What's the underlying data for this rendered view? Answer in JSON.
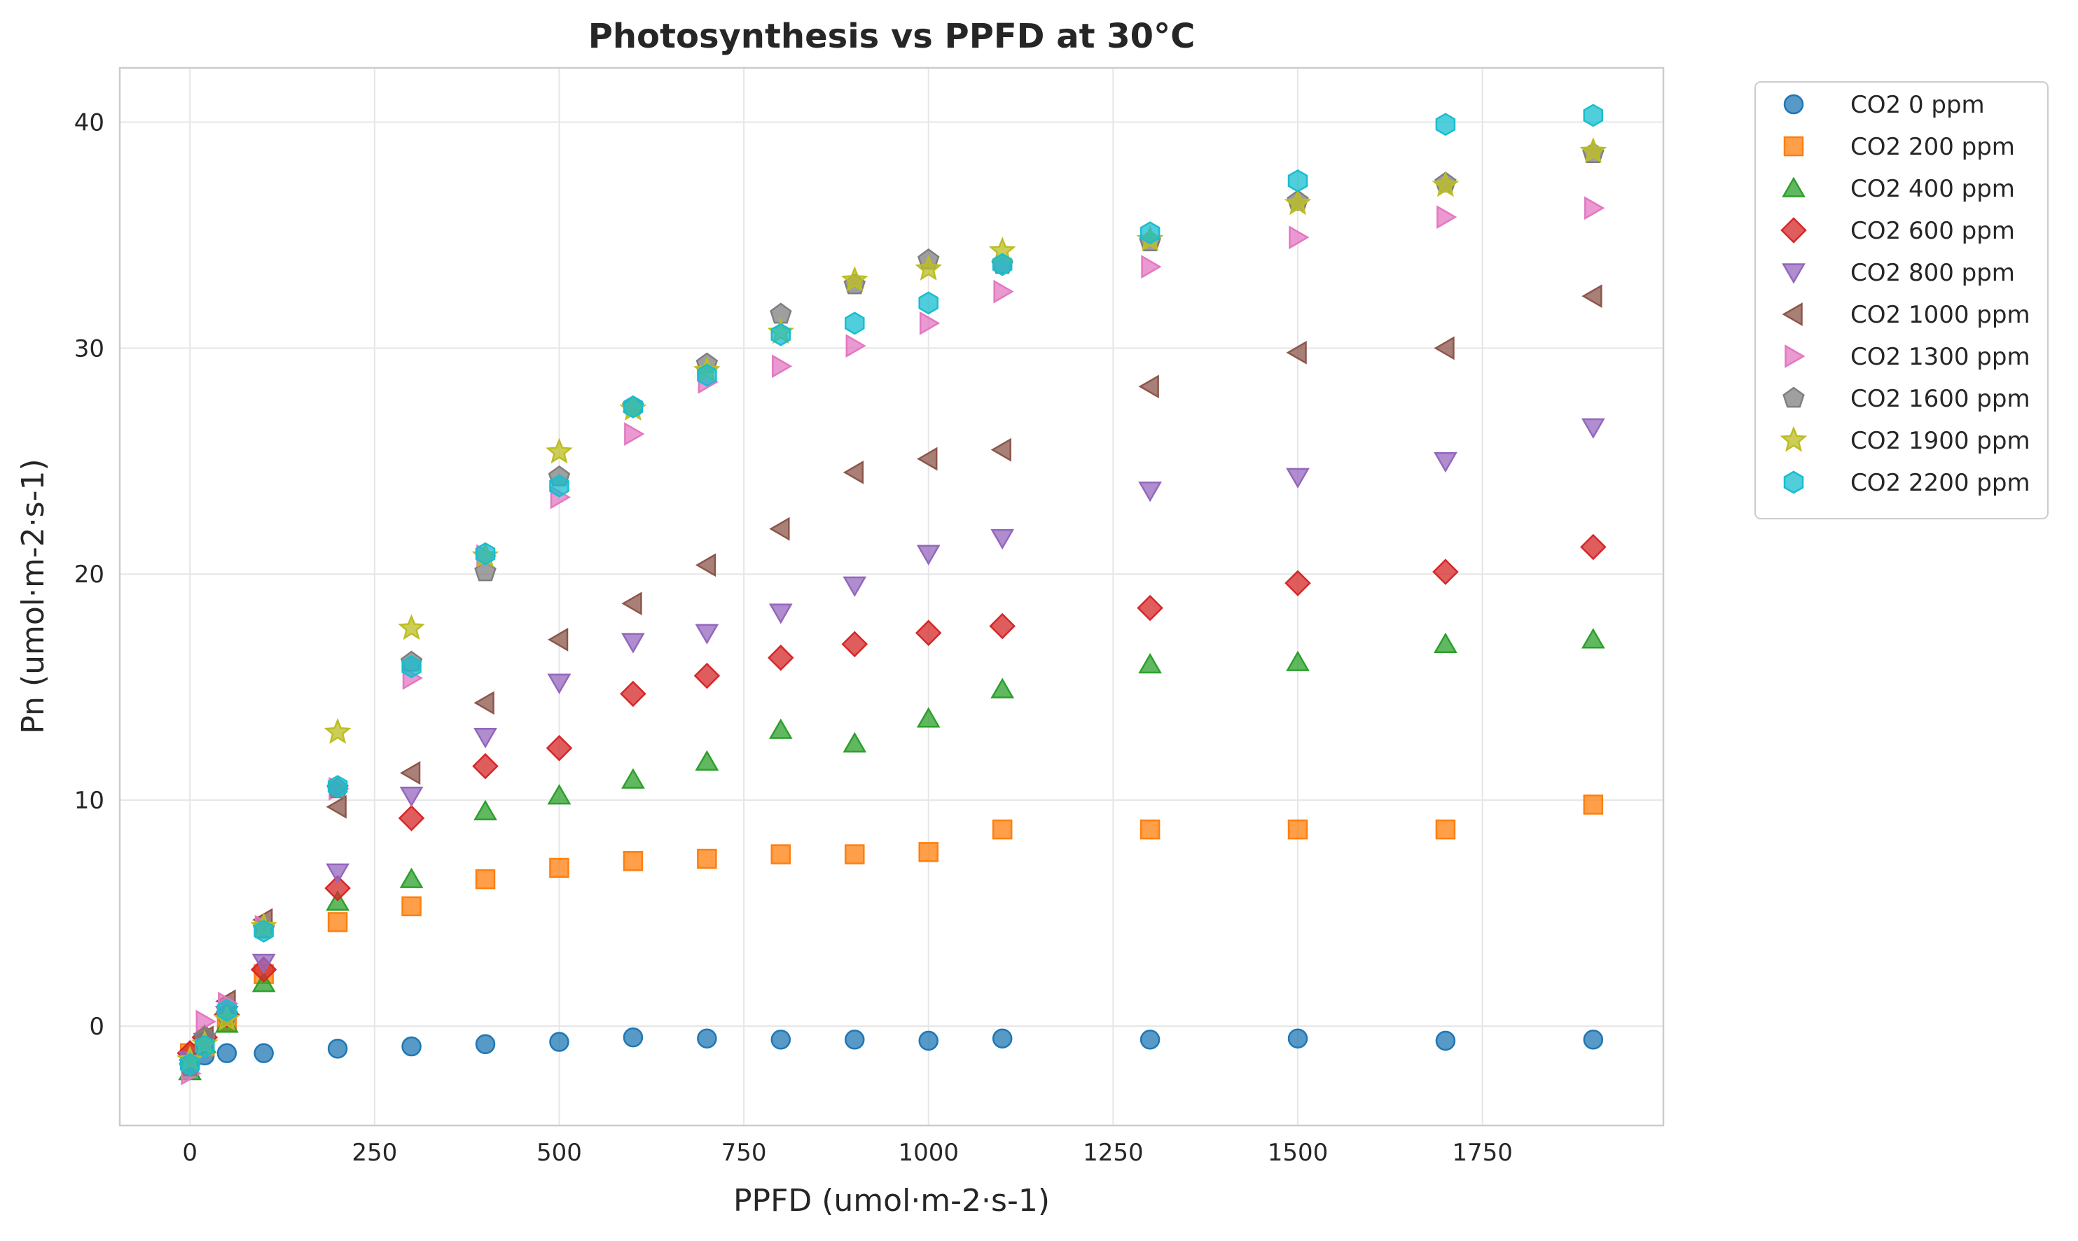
{
  "chart_data": {
    "type": "scatter",
    "title": "Photosynthesis vs PPFD at 30°C",
    "xlabel": "PPFD (umol·m-2·s-1)",
    "ylabel": "Pn (umol·m-2·s-1)",
    "xlim": [
      -95,
      1995
    ],
    "ylim": [
      -4.4,
      42.4
    ],
    "xticks": [
      0,
      250,
      500,
      750,
      1000,
      1250,
      1500,
      1750
    ],
    "yticks": [
      0,
      10,
      20,
      30,
      40
    ],
    "x_tick_labels": [
      "0",
      "250",
      "500",
      "750",
      "1000",
      "1250",
      "1500",
      "1750"
    ],
    "y_tick_labels": [
      "0",
      "10",
      "20",
      "30",
      "40"
    ],
    "grid": true,
    "legend_position": "outside-top-right",
    "x": [
      0,
      20,
      50,
      100,
      200,
      300,
      400,
      500,
      600,
      700,
      800,
      900,
      1000,
      1100,
      1300,
      1500,
      1700,
      1900
    ],
    "series": [
      {
        "name": "CO2 0 ppm",
        "marker": "circle",
        "color": "#1f77b4",
        "values": [
          -1.6,
          -1.3,
          -1.2,
          -1.2,
          -1.0,
          -0.9,
          -0.8,
          -0.7,
          -0.5,
          -0.55,
          -0.6,
          -0.6,
          -0.65,
          -0.55,
          -0.6,
          -0.55,
          -0.65,
          -0.6
        ]
      },
      {
        "name": "CO2 200 ppm",
        "marker": "square",
        "color": "#ff7f0e",
        "values": [
          -1.2,
          -0.9,
          0.2,
          2.3,
          4.6,
          5.3,
          6.5,
          7.0,
          7.3,
          7.4,
          7.6,
          7.6,
          7.7,
          8.7,
          8.7,
          8.7,
          8.7,
          9.8
        ]
      },
      {
        "name": "CO2 400 ppm",
        "marker": "triangle-up",
        "color": "#2ca02c",
        "values": [
          -2.0,
          -0.8,
          0.1,
          1.9,
          5.5,
          6.5,
          9.5,
          10.2,
          10.9,
          11.7,
          13.1,
          12.5,
          13.6,
          14.9,
          16.0,
          16.1,
          16.9,
          17.1
        ]
      },
      {
        "name": "CO2 600 ppm",
        "marker": "diamond",
        "color": "#d62728",
        "values": [
          -1.2,
          -0.5,
          0.5,
          2.5,
          6.1,
          9.2,
          11.5,
          12.3,
          14.7,
          15.5,
          16.3,
          16.9,
          17.4,
          17.7,
          18.5,
          19.6,
          20.1,
          21.2
        ]
      },
      {
        "name": "CO2 800 ppm",
        "marker": "triangle-down",
        "color": "#9467bd",
        "values": [
          -1.5,
          -0.7,
          0.5,
          2.8,
          6.8,
          10.2,
          12.8,
          15.2,
          17.0,
          17.4,
          18.3,
          19.5,
          20.9,
          21.6,
          23.7,
          24.3,
          25.0,
          26.5
        ]
      },
      {
        "name": "CO2 1000 ppm",
        "marker": "triangle-left",
        "color": "#8c564b",
        "values": [
          -1.5,
          -0.5,
          1.1,
          4.7,
          9.7,
          11.2,
          14.3,
          17.1,
          18.7,
          20.4,
          22.0,
          24.5,
          25.1,
          25.5,
          28.3,
          29.8,
          30.0,
          32.3
        ]
      },
      {
        "name": "CO2 1300 ppm",
        "marker": "triangle-right",
        "color": "#e377c2",
        "values": [
          -2.1,
          0.2,
          1.0,
          4.4,
          10.5,
          15.4,
          20.8,
          23.4,
          26.2,
          28.5,
          29.2,
          30.1,
          31.1,
          32.5,
          33.6,
          34.9,
          35.8,
          36.2
        ]
      },
      {
        "name": "CO2 1600 ppm",
        "marker": "pentagon",
        "color": "#7f7f7f",
        "values": [
          -1.8,
          -0.5,
          0.5,
          4.3,
          10.5,
          16.1,
          20.1,
          24.3,
          27.4,
          29.3,
          31.5,
          32.8,
          33.9,
          33.7,
          34.7,
          36.5,
          37.3,
          38.6
        ]
      },
      {
        "name": "CO2 1900 ppm",
        "marker": "star",
        "color": "#bcbd22",
        "values": [
          -1.5,
          -0.8,
          0.3,
          4.4,
          13.0,
          17.6,
          20.8,
          25.4,
          27.3,
          29.0,
          30.7,
          33.0,
          33.5,
          34.3,
          34.8,
          36.4,
          37.2,
          38.7
        ]
      },
      {
        "name": "CO2 2200 ppm",
        "marker": "hexagon",
        "color": "#17becf",
        "values": [
          -1.7,
          -0.9,
          0.7,
          4.2,
          10.6,
          15.9,
          20.9,
          23.9,
          27.4,
          28.8,
          30.6,
          31.1,
          32.0,
          33.7,
          35.1,
          37.4,
          39.9,
          40.3
        ]
      }
    ]
  }
}
